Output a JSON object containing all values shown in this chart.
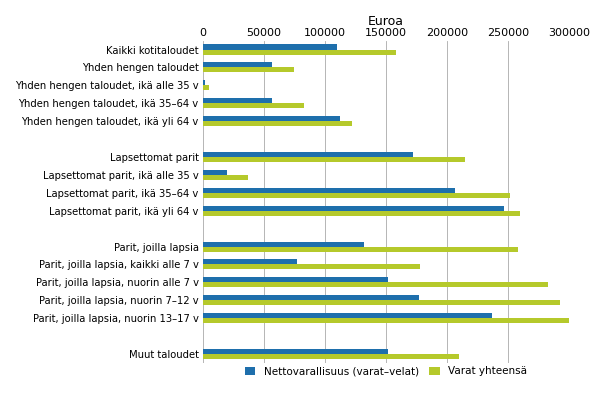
{
  "categories": [
    "Kaikki kotitaloudet",
    "Yhden hengen taloudet",
    "Yhden hengen taloudet, ikä alle 35 v",
    "Yhden hengen taloudet, ikä 35–64 v",
    "Yhden hengen taloudet, ikä yli 64 v",
    "",
    "Lapsettomat parit",
    "Lapsettomat parit, ikä alle 35 v",
    "Lapsettomat parit, ikä 35–64 v",
    "Lapsettomat parit, ikä yli 64 v",
    "",
    "Parit, joilla lapsia",
    "Parit, joilla lapsia, kaikki alle 7 v",
    "Parit, joilla lapsia, nuorin alle 7 v",
    "Parit, joilla lapsia, nuorin 7–12 v",
    "Parit, joilla lapsia, nuorin 13–17 v",
    "",
    "Muut taloudet"
  ],
  "netto": [
    110000,
    57000,
    2000,
    57000,
    112000,
    null,
    172000,
    20000,
    207000,
    247000,
    null,
    132000,
    77000,
    152000,
    177000,
    237000,
    null,
    152000
  ],
  "varat": [
    158000,
    75000,
    5000,
    83000,
    122000,
    null,
    215000,
    37000,
    252000,
    260000,
    null,
    258000,
    178000,
    283000,
    293000,
    303000,
    null,
    210000
  ],
  "blue_color": "#1e6fac",
  "green_color": "#b5c92b",
  "xlabel": "Euroa",
  "legend_netto": "Nettovarallisuus (varat–velat)",
  "legend_varat": "Varat yhteensä",
  "xlim": [
    0,
    300000
  ],
  "xticks": [
    0,
    50000,
    100000,
    150000,
    200000,
    250000,
    300000
  ],
  "xtick_labels": [
    "0",
    "50000",
    "100000",
    "150000",
    "200000",
    "250000",
    "300000"
  ],
  "bar_height": 0.28,
  "figsize": [
    6.05,
    4.16
  ],
  "dpi": 100
}
